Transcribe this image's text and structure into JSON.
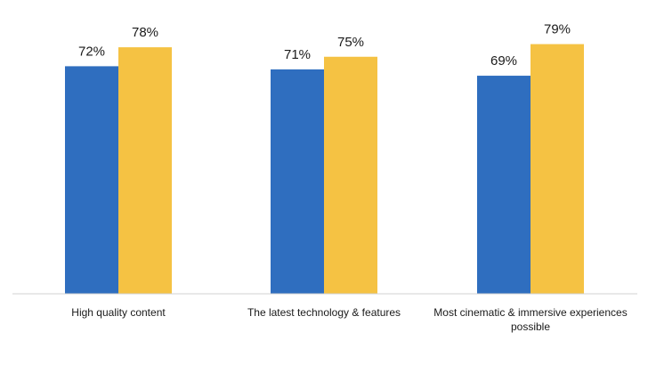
{
  "chart_data": {
    "type": "bar",
    "title": "",
    "xlabel": "",
    "ylabel": "",
    "ylim": [
      0,
      100
    ],
    "grid": false,
    "legend": "none",
    "value_format": "percent",
    "categories": [
      [
        "High quality content"
      ],
      [
        "The latest technology & features"
      ],
      [
        "Most cinematic & immersive experiences",
        "possible"
      ]
    ],
    "series": [
      {
        "color": "#2f6ebf",
        "values": [
          72,
          71,
          69
        ]
      },
      {
        "color": "#f5c243",
        "values": [
          78,
          75,
          79
        ]
      }
    ]
  }
}
